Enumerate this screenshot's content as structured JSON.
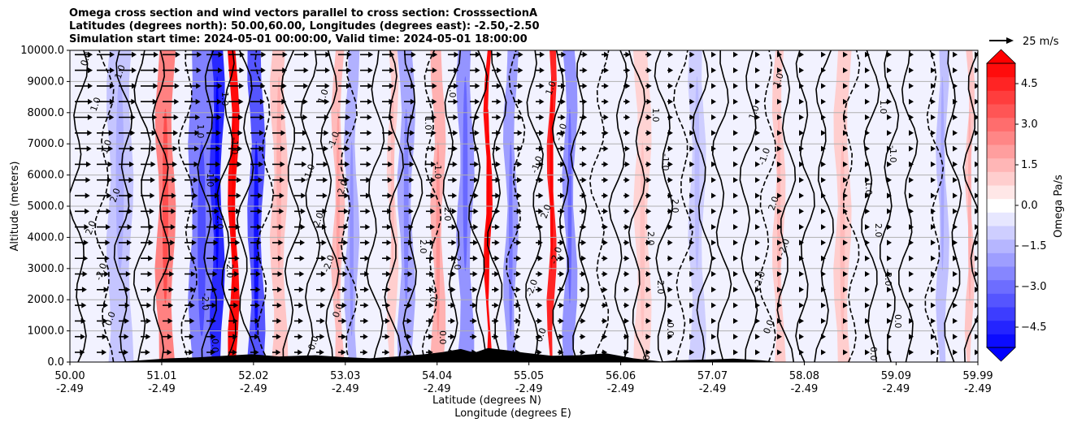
{
  "chart_data": {
    "type": "heatmap",
    "title_lines": [
      "Omega cross section and wind vectors parallel to cross section: CrosssectionA",
      "Latitudes (degrees north): 50.00,60.00, Longitudes (degrees east): -2.50,-2.50",
      "Simulation start time: 2024-05-01 00:00:00, Valid time: 2024-05-01 18:00:00"
    ],
    "ylabel": "Altitude (meters)",
    "xlabel_lat": "Latitude (degrees N)",
    "xlabel_lon": "Longitude (degrees E)",
    "y_ticks": [
      "0.0",
      "1000.0",
      "2000.0",
      "3000.0",
      "4000.0",
      "5000.0",
      "6000.0",
      "7000.0",
      "8000.0",
      "9000.0",
      "10000.0"
    ],
    "ylim": [
      0,
      10000
    ],
    "xlim": [
      50.0,
      59.99
    ],
    "x_ticks_lat": [
      "50.00",
      "51.01",
      "52.02",
      "53.03",
      "54.04",
      "55.05",
      "56.06",
      "57.07",
      "58.08",
      "59.09",
      "59.99"
    ],
    "x_ticks_lon": [
      "-2.49",
      "-2.49",
      "-2.49",
      "-2.49",
      "-2.49",
      "-2.49",
      "-2.49",
      "-2.49",
      "-2.49",
      "-2.49",
      "-2.49"
    ],
    "colorbar": {
      "label": "Omega Pa/s",
      "ticks": [
        "4.5",
        "3.0",
        "1.5",
        "0.0",
        "−1.5",
        "−3.0",
        "−4.5"
      ],
      "range": [
        -5.25,
        5.25
      ],
      "extend": "both",
      "positive_color": "#ff0000",
      "negative_color": "#0000ff"
    },
    "quiver_key": "25 m/s",
    "contour_labels": [
      "0.0",
      "1.0",
      "-1.0",
      "2.0",
      "-2.0"
    ],
    "grid": "horizontal",
    "omega_bands": [
      {
        "x": 50.55,
        "w": 0.25,
        "v": -1.2
      },
      {
        "x": 51.05,
        "w": 0.18,
        "v": 2.6
      },
      {
        "x": 51.45,
        "w": 0.25,
        "v": -2.6
      },
      {
        "x": 51.62,
        "w": 0.12,
        "v": -4.4
      },
      {
        "x": 51.8,
        "w": 0.08,
        "v": 5.0
      },
      {
        "x": 52.05,
        "w": 0.15,
        "v": -3.5
      },
      {
        "x": 52.3,
        "w": 0.15,
        "v": 1.2
      },
      {
        "x": 52.95,
        "w": 0.1,
        "v": 1.4
      },
      {
        "x": 53.1,
        "w": 0.12,
        "v": -1.6
      },
      {
        "x": 53.55,
        "w": 0.08,
        "v": 1.0
      },
      {
        "x": 53.7,
        "w": 0.15,
        "v": -1.8
      },
      {
        "x": 54.05,
        "w": 0.12,
        "v": 1.6
      },
      {
        "x": 54.35,
        "w": 0.15,
        "v": -2.2
      },
      {
        "x": 54.6,
        "w": 0.05,
        "v": 5.0
      },
      {
        "x": 54.85,
        "w": 0.12,
        "v": -2.0
      },
      {
        "x": 55.3,
        "w": 0.06,
        "v": 4.5
      },
      {
        "x": 55.5,
        "w": 0.12,
        "v": -2.2
      },
      {
        "x": 56.3,
        "w": 0.15,
        "v": 0.9
      },
      {
        "x": 56.9,
        "w": 0.15,
        "v": -1.0
      },
      {
        "x": 57.8,
        "w": 0.1,
        "v": 1.1
      },
      {
        "x": 58.5,
        "w": 0.15,
        "v": 1.0
      },
      {
        "x": 59.6,
        "w": 0.1,
        "v": -1.3
      },
      {
        "x": 59.9,
        "w": 0.06,
        "v": 1.2
      }
    ],
    "terrain": [
      {
        "x": 50.0,
        "h": 0
      },
      {
        "x": 50.6,
        "h": 20
      },
      {
        "x": 50.9,
        "h": 80
      },
      {
        "x": 51.1,
        "h": 120
      },
      {
        "x": 51.4,
        "h": 150
      },
      {
        "x": 51.7,
        "h": 200
      },
      {
        "x": 52.0,
        "h": 250
      },
      {
        "x": 52.3,
        "h": 180
      },
      {
        "x": 52.7,
        "h": 220
      },
      {
        "x": 53.0,
        "h": 160
      },
      {
        "x": 53.3,
        "h": 120
      },
      {
        "x": 53.6,
        "h": 180
      },
      {
        "x": 53.9,
        "h": 250
      },
      {
        "x": 54.1,
        "h": 320
      },
      {
        "x": 54.3,
        "h": 420
      },
      {
        "x": 54.45,
        "h": 300
      },
      {
        "x": 54.6,
        "h": 450
      },
      {
        "x": 54.8,
        "h": 380
      },
      {
        "x": 55.0,
        "h": 300
      },
      {
        "x": 55.3,
        "h": 200
      },
      {
        "x": 55.6,
        "h": 220
      },
      {
        "x": 55.9,
        "h": 280
      },
      {
        "x": 56.2,
        "h": 120
      },
      {
        "x": 56.5,
        "h": 20
      },
      {
        "x": 56.7,
        "h": 60
      },
      {
        "x": 57.0,
        "h": 80
      },
      {
        "x": 57.3,
        "h": 110
      },
      {
        "x": 57.6,
        "h": 60
      },
      {
        "x": 57.8,
        "h": 0
      },
      {
        "x": 59.99,
        "h": 0
      }
    ]
  }
}
